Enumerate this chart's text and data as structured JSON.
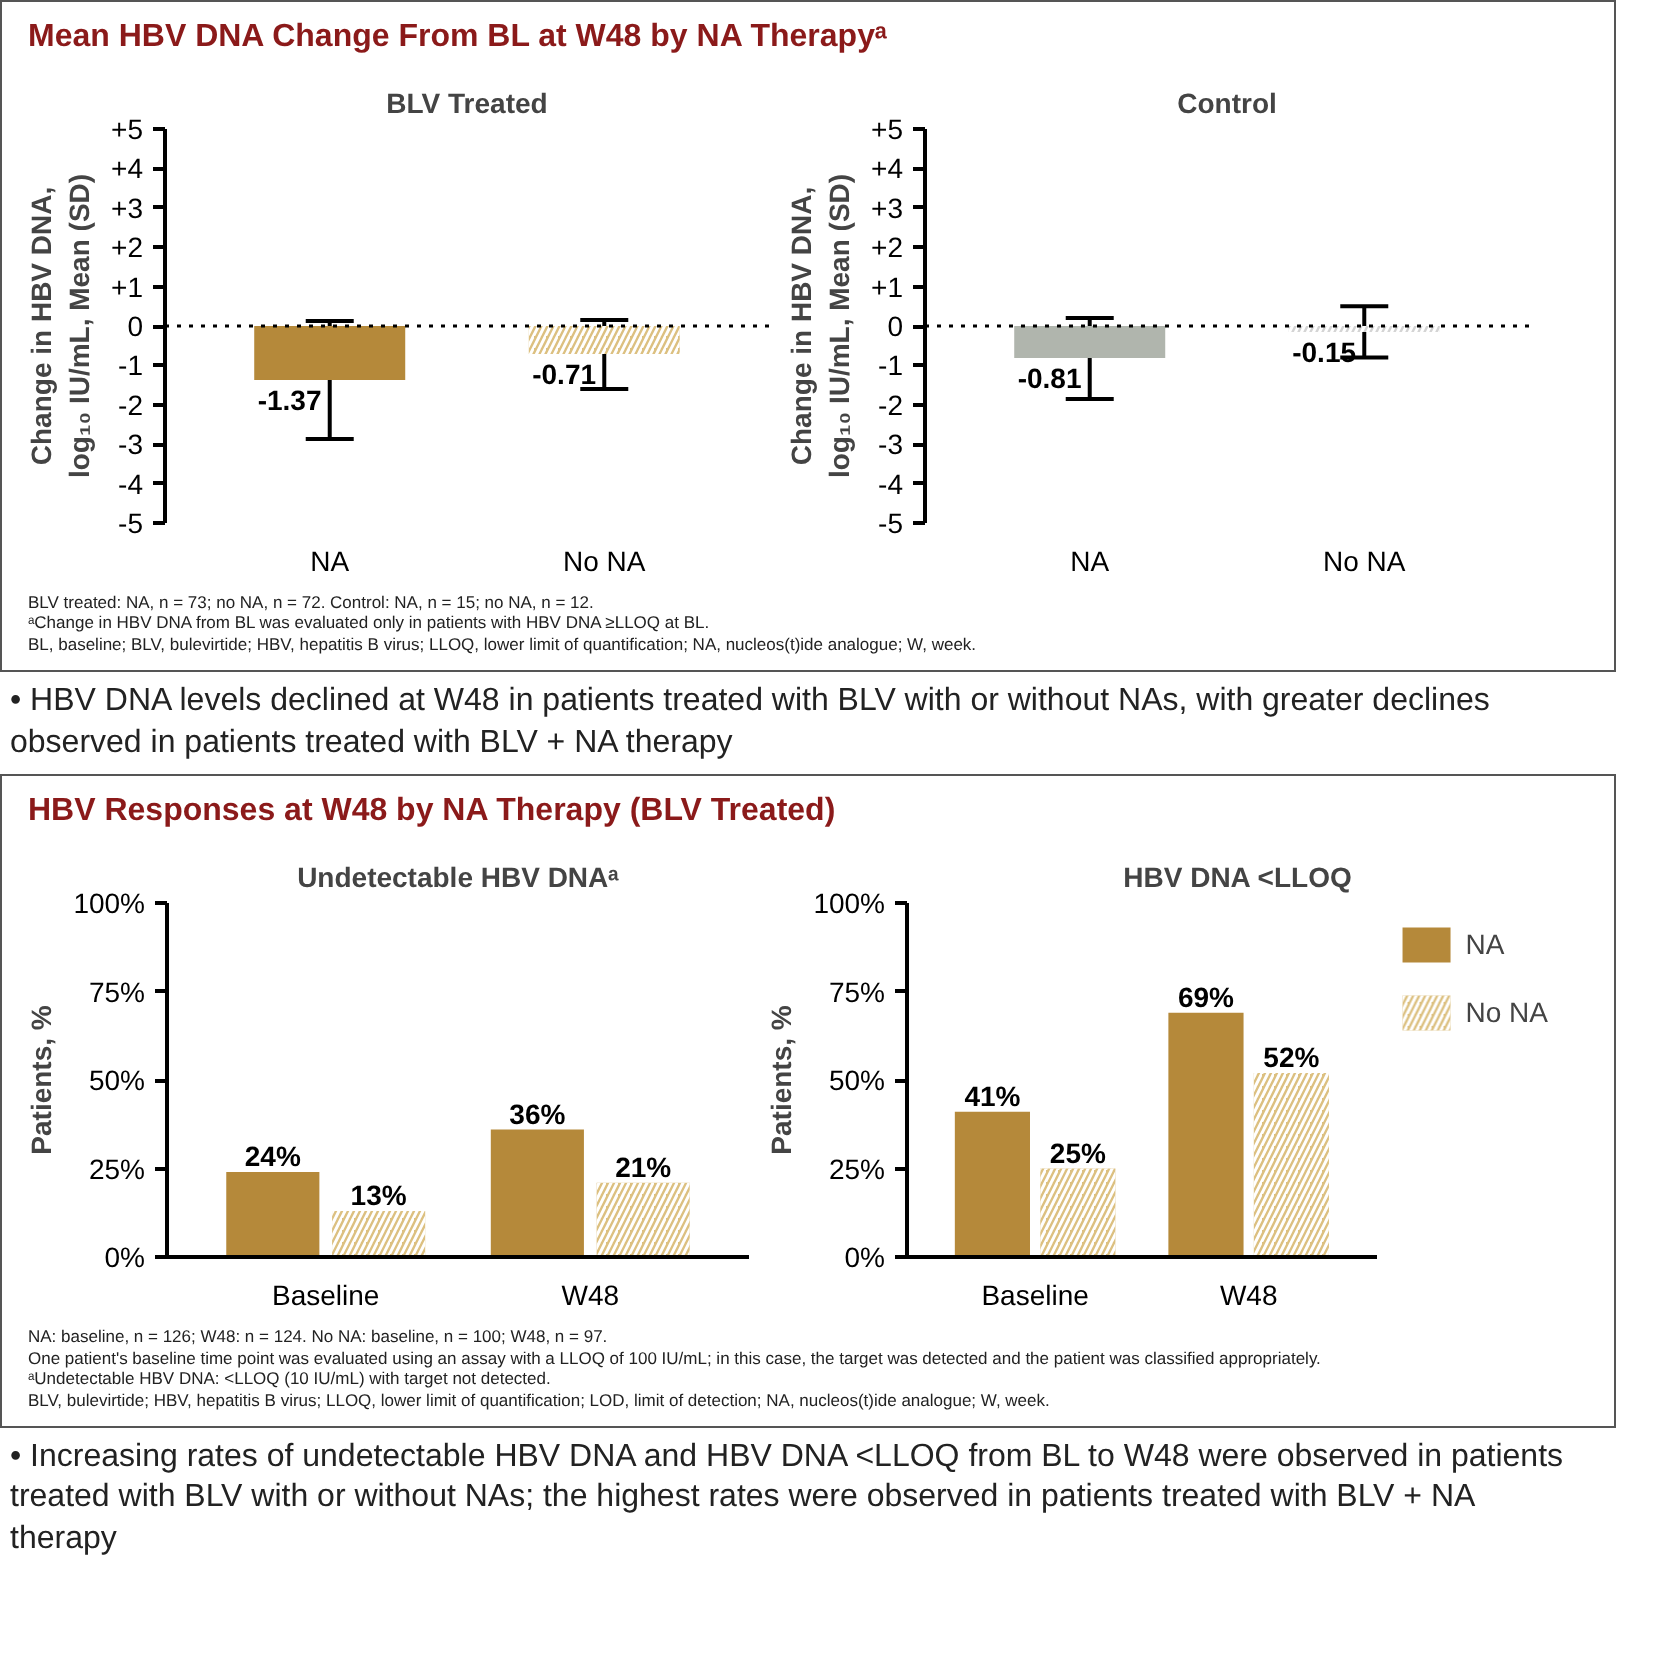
{
  "chart_data": [
    {
      "type": "bar",
      "title": "BLV Treated",
      "ylabel": "Change in HBV DNA,\nlog₁₀ IU/mL, Mean (SD)",
      "categories": [
        "NA",
        "No NA"
      ],
      "values": [
        -1.37,
        -0.71
      ],
      "colors": [
        "#b5893a",
        "#dcc080"
      ],
      "errors": [
        [
          -2.87,
          0.13
        ],
        [
          -1.6,
          0.15
        ]
      ],
      "data_labels": true,
      "ylim": [
        -5,
        5
      ],
      "yticks": [
        {
          "value": 5,
          "label": "+5"
        },
        {
          "value": 4,
          "label": "+4"
        },
        {
          "value": 3,
          "label": "+3"
        },
        {
          "value": 2,
          "label": "+2"
        },
        {
          "value": 1,
          "label": "+1"
        },
        0,
        -1,
        -2,
        -3,
        -4,
        -5
      ],
      "ref_lines": [
        {
          "axis": "y",
          "value": 0,
          "line_style": "dotted",
          "color": "#000000"
        }
      ],
      "grid": false,
      "legend": false,
      "annotations": [
        "Mean HBV DNA Change From BL at W48 by NA Therapyᵃ",
        "BLV treated: NA, n = 73; no NA, n = 72. Control: NA, n = 15; no NA, n = 12.",
        "ᵃChange in HBV DNA from BL was evaluated only in patients with HBV DNA ≥LLOQ at BL.",
        "BL, baseline; BLV, bulevirtide; HBV, hepatitis B virus; LLOQ, lower limit of quantification; NA, nucleos(t)ide analogue; W, week."
      ]
    },
    {
      "type": "bar",
      "title": "Control",
      "ylabel": "Change in HBV DNA,\nlog₁₀ IU/mL, Mean (SD)",
      "categories": [
        "NA",
        "No NA"
      ],
      "values": [
        -0.81,
        -0.15
      ],
      "colors": [
        "#b0b5ad",
        "#d4d4d4"
      ],
      "errors": [
        [
          -1.85,
          0.2
        ],
        [
          -0.8,
          0.5
        ]
      ],
      "data_labels": true,
      "ylim": [
        -5,
        5
      ],
      "yticks": [
        {
          "value": 5,
          "label": "+5"
        },
        {
          "value": 4,
          "label": "+4"
        },
        {
          "value": 3,
          "label": "+3"
        },
        {
          "value": 2,
          "label": "+2"
        },
        {
          "value": 1,
          "label": "+1"
        },
        0,
        -1,
        -2,
        -3,
        -4,
        -5
      ],
      "ref_lines": [
        {
          "axis": "y",
          "value": 0,
          "line_style": "dotted",
          "color": "#000000"
        }
      ],
      "grid": false,
      "legend": false,
      "annotations": [
        "• HBV DNA levels declined at W48 in patients treated with BLV with or without NAs, with greater declines observed in patients treated with BLV + NA therapy"
      ]
    },
    {
      "type": "bar",
      "title": "Undetectable HBV DNAᵃ",
      "ylabel": "Patients, %",
      "categories": [
        "Baseline",
        "W48"
      ],
      "ylim": [
        0,
        100
      ],
      "yticks": [
        {
          "value": 0,
          "label": "0%"
        },
        {
          "value": 25,
          "label": "25%"
        },
        {
          "value": 50,
          "label": "50%"
        },
        {
          "value": 75,
          "label": "75%"
        },
        {
          "value": 100,
          "label": "100%"
        }
      ],
      "grid": false,
      "legend": false,
      "series": [
        {
          "color": "#b5893a",
          "values": [
            24,
            36
          ],
          "value_labels": [
            "24%",
            "36%"
          ]
        },
        {
          "color": "#dcc080",
          "values": [
            13,
            21
          ],
          "value_labels": [
            "13%",
            "21%"
          ]
        }
      ],
      "annotations": [
        "HBV Responses at W48 by NA Therapy (BLV Treated)",
        "NA: baseline, n = 126; W48: n = 124. No NA: baseline, n = 100; W48, n = 97.",
        "One patient's baseline time point was evaluated using an assay with a LLOQ of 100 IU/mL; in this case, the target was detected and the patient was classified appropriately.",
        "ᵃUndetectable HBV DNA: <LLOQ (10 IU/mL) with target not detected.",
        "BLV, bulevirtide; HBV, hepatitis B virus; LLOQ, lower limit of quantification; LOD, limit of detection; NA, nucleos(t)ide analogue; W, week."
      ]
    },
    {
      "type": "bar",
      "title": "HBV DNA <LLOQ",
      "ylabel": "Patients, %",
      "categories": [
        "Baseline",
        "W48"
      ],
      "ylim": [
        0,
        100
      ],
      "yticks": [
        {
          "value": 0,
          "label": "0%"
        },
        {
          "value": 25,
          "label": "25%"
        },
        {
          "value": 50,
          "label": "50%"
        },
        {
          "value": 75,
          "label": "75%"
        },
        {
          "value": 100,
          "label": "100%"
        }
      ],
      "grid": false,
      "legend": "right",
      "series": [
        {
          "name": "NA",
          "color": "#b5893a",
          "values": [
            41,
            69
          ],
          "value_labels": [
            "41%",
            "69%"
          ]
        },
        {
          "name": "No NA",
          "color": "#dcc080",
          "values": [
            25,
            52
          ],
          "value_labels": [
            "25%",
            "52%"
          ]
        }
      ],
      "annotations": [
        "• Increasing rates of undetectable HBV DNA and HBV DNA <LLOQ from BL to W48 were observed in patients treated with BLV with or without NAs; the highest rates were observed in patients treated with BLV + NA therapy"
      ]
    }
  ]
}
